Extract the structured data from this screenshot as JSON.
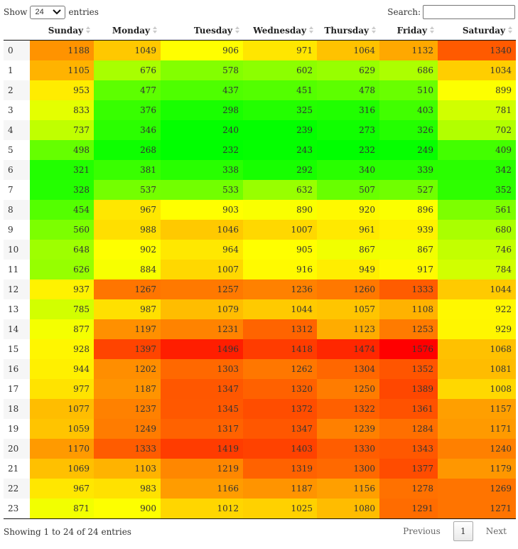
{
  "length_menu": {
    "label_before": "Show",
    "selected": "24",
    "label_after": "entries"
  },
  "search": {
    "label": "Search:",
    "value": ""
  },
  "table": {
    "columns": [
      "",
      "Sunday",
      "Monday",
      "Tuesday",
      "Wednesday",
      "Thursday",
      "Friday",
      "Saturday"
    ],
    "rows": [
      {
        "hour": "0",
        "values": [
          1188,
          1049,
          906,
          971,
          1064,
          1132,
          1340
        ]
      },
      {
        "hour": "1",
        "values": [
          1105,
          676,
          578,
          602,
          629,
          686,
          1034
        ]
      },
      {
        "hour": "2",
        "values": [
          953,
          477,
          437,
          451,
          478,
          510,
          899
        ]
      },
      {
        "hour": "3",
        "values": [
          833,
          376,
          298,
          325,
          316,
          403,
          781
        ]
      },
      {
        "hour": "4",
        "values": [
          737,
          346,
          240,
          239,
          273,
          326,
          702
        ]
      },
      {
        "hour": "5",
        "values": [
          498,
          268,
          232,
          243,
          232,
          249,
          409
        ]
      },
      {
        "hour": "6",
        "values": [
          321,
          381,
          338,
          292,
          340,
          339,
          342
        ]
      },
      {
        "hour": "7",
        "values": [
          328,
          537,
          533,
          632,
          507,
          527,
          352
        ]
      },
      {
        "hour": "8",
        "values": [
          454,
          967,
          903,
          890,
          920,
          896,
          561
        ]
      },
      {
        "hour": "9",
        "values": [
          560,
          988,
          1046,
          1007,
          961,
          939,
          680
        ]
      },
      {
        "hour": "10",
        "values": [
          648,
          902,
          964,
          905,
          867,
          867,
          746
        ]
      },
      {
        "hour": "11",
        "values": [
          626,
          884,
          1007,
          916,
          949,
          917,
          784
        ]
      },
      {
        "hour": "12",
        "values": [
          937,
          1267,
          1257,
          1236,
          1260,
          1333,
          1044
        ]
      },
      {
        "hour": "13",
        "values": [
          785,
          987,
          1079,
          1044,
          1057,
          1108,
          922
        ]
      },
      {
        "hour": "14",
        "values": [
          877,
          1197,
          1231,
          1312,
          1123,
          1253,
          929
        ]
      },
      {
        "hour": "15",
        "values": [
          928,
          1397,
          1496,
          1418,
          1474,
          1576,
          1068
        ]
      },
      {
        "hour": "16",
        "values": [
          944,
          1202,
          1303,
          1262,
          1304,
          1352,
          1081
        ]
      },
      {
        "hour": "17",
        "values": [
          977,
          1187,
          1347,
          1320,
          1250,
          1389,
          1008
        ]
      },
      {
        "hour": "18",
        "values": [
          1077,
          1237,
          1345,
          1372,
          1322,
          1361,
          1157
        ]
      },
      {
        "hour": "19",
        "values": [
          1059,
          1249,
          1317,
          1347,
          1239,
          1284,
          1171
        ]
      },
      {
        "hour": "20",
        "values": [
          1170,
          1333,
          1419,
          1403,
          1330,
          1343,
          1240
        ]
      },
      {
        "hour": "21",
        "values": [
          1069,
          1103,
          1219,
          1319,
          1300,
          1377,
          1179
        ]
      },
      {
        "hour": "22",
        "values": [
          967,
          983,
          1166,
          1187,
          1156,
          1278,
          1269
        ]
      },
      {
        "hour": "23",
        "values": [
          871,
          900,
          1012,
          1025,
          1080,
          1291,
          1271
        ]
      }
    ]
  },
  "colors": {
    "low": "#00ff00",
    "mid": "#ffff00",
    "high": "#ff0000"
  },
  "info_text": "Showing 1 to 24 of 24 entries",
  "pagination": {
    "previous": "Previous",
    "current": "1",
    "next": "Next"
  }
}
